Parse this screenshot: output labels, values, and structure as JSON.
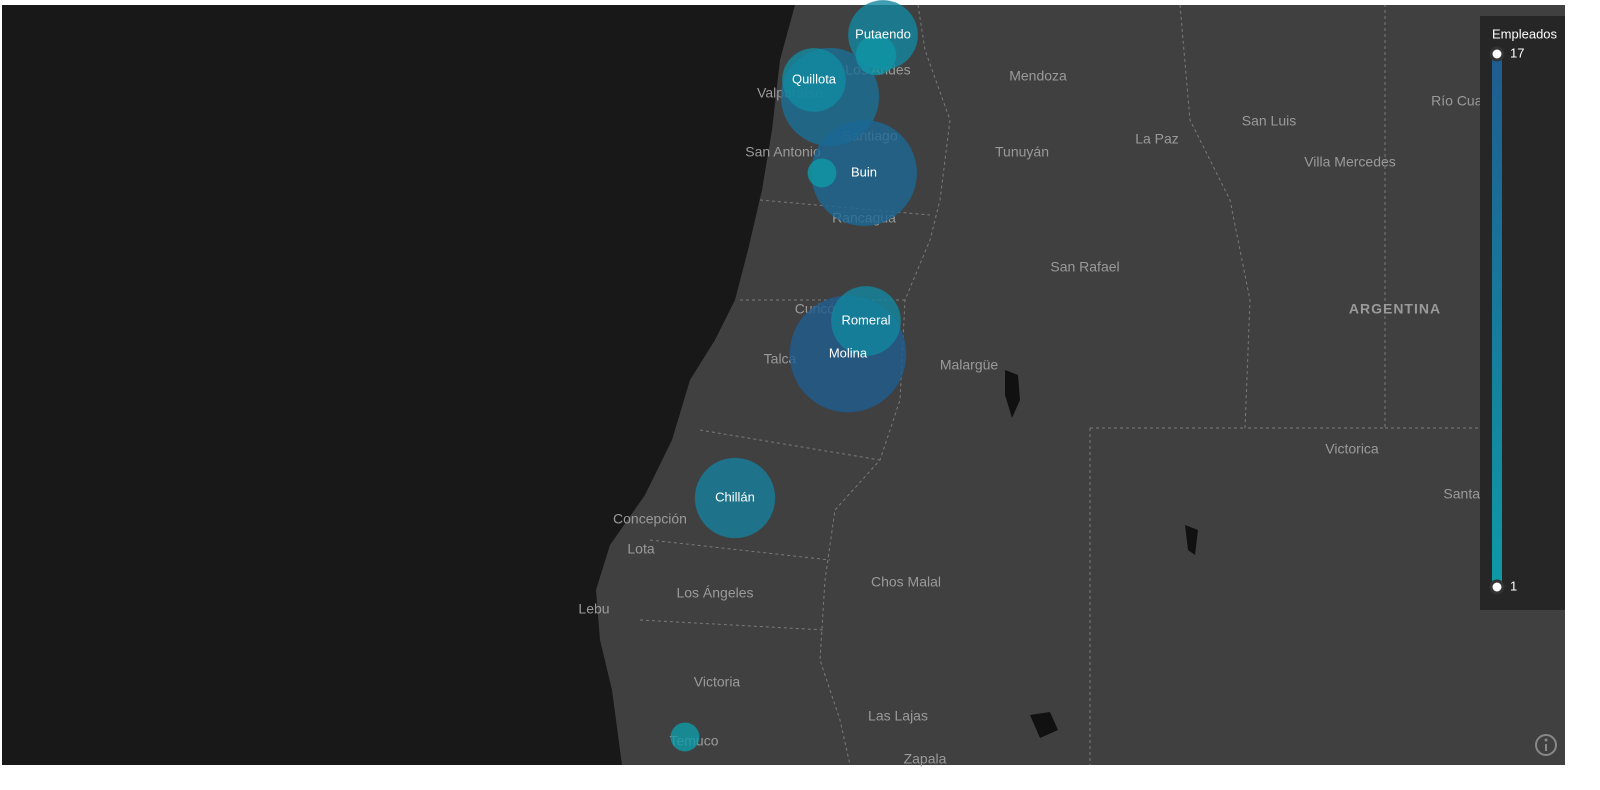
{
  "map": {
    "legend": {
      "title": "Empleados",
      "max": 17,
      "min": 1,
      "colors": [
        "#0e9aa7",
        "#1f5c8f"
      ]
    },
    "bubbles": [
      {
        "label": null,
        "value": 12
      },
      {
        "label": "Quillota",
        "value": 5
      },
      {
        "label": "Putaendo",
        "value": 6
      },
      {
        "label": null,
        "value": 2
      },
      {
        "label": "Buin",
        "value": 14
      },
      {
        "label": null,
        "value": 1
      },
      {
        "label": "Molina",
        "value": 17
      },
      {
        "label": "Romeral",
        "value": 6
      },
      {
        "label": "Chillán",
        "value": 8
      },
      {
        "label": null,
        "value": 1
      }
    ],
    "places": [
      "Mendoza",
      "San Luis",
      "La Paz",
      "Tunuyán",
      "Villa Mercedes",
      "Río Cuarto",
      "San Rafael",
      "ARGENTINA",
      "Malargüe",
      "Victorica",
      "Santa Rosa",
      "Chos Malal",
      "Las Lajas",
      "Zapala",
      "Valparaíso",
      "San Antonio",
      "Los Andes",
      "Santiago",
      "Rancagua",
      "Curicó",
      "Talca",
      "Concepción",
      "Lota",
      "Los Ángeles",
      "Lebu",
      "Victoria",
      "Temuco"
    ]
  }
}
